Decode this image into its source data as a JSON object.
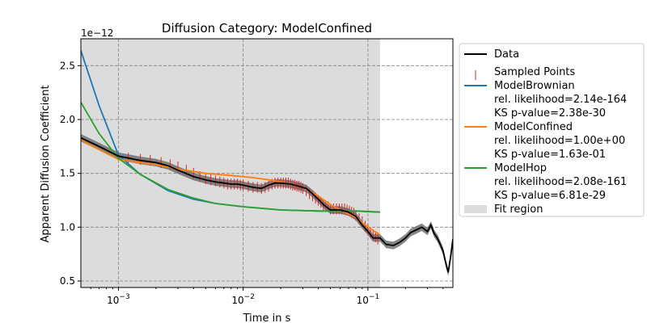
{
  "chart_data": {
    "type": "line",
    "title": "Diffusion Category: ModelConfined",
    "xlabel": "Time in s",
    "ylabel": "Apparent Diffusion Coefficient",
    "xscale": "log",
    "xlim": [
      0.0005,
      0.48
    ],
    "ylim": [
      4.4e-13,
      2.75e-12
    ],
    "y_offset_label": "1e−12",
    "grid": true,
    "legend_position": "outside-right",
    "x_tick_labels": [
      "10^-3",
      "10^-2",
      "10^-1"
    ],
    "x_ticks": [
      0.001,
      0.01,
      0.1
    ],
    "y_ticks": [
      0.5,
      1.0,
      1.5,
      2.0,
      2.5
    ],
    "y_tick_labels": [
      "0.5",
      "1.0",
      "1.5",
      "2.0",
      "2.5"
    ],
    "fit_region": {
      "x": [
        0.0005,
        0.125
      ],
      "label": "Fit region",
      "color": "#dcdcdc"
    },
    "series": [
      {
        "name": "Data",
        "color": "#000000",
        "x": [
          0.0005,
          0.0007,
          0.001,
          0.0015,
          0.002,
          0.0025,
          0.003,
          0.004,
          0.005,
          0.006,
          0.007,
          0.008,
          0.009,
          0.01,
          0.012,
          0.014,
          0.016,
          0.018,
          0.02,
          0.024,
          0.028,
          0.032,
          0.036,
          0.04,
          0.045,
          0.05,
          0.06,
          0.07,
          0.08,
          0.09,
          0.1,
          0.11,
          0.125,
          0.14,
          0.16,
          0.18,
          0.2,
          0.22,
          0.25,
          0.27,
          0.3,
          0.32,
          0.34,
          0.36,
          0.38,
          0.4,
          0.42,
          0.44,
          0.46,
          0.48
        ],
        "y": [
          1.83,
          1.75,
          1.66,
          1.62,
          1.6,
          1.57,
          1.53,
          1.47,
          1.44,
          1.42,
          1.41,
          1.4,
          1.4,
          1.39,
          1.37,
          1.36,
          1.39,
          1.41,
          1.41,
          1.4,
          1.38,
          1.36,
          1.31,
          1.26,
          1.2,
          1.16,
          1.16,
          1.14,
          1.1,
          1.02,
          0.96,
          0.9,
          0.9,
          0.84,
          0.83,
          0.86,
          0.9,
          0.95,
          0.98,
          1.0,
          0.96,
          1.02,
          0.94,
          0.9,
          0.84,
          0.78,
          0.67,
          0.58,
          0.72,
          0.89
        ]
      },
      {
        "name": "Sampled Points",
        "color": "#d62728",
        "x": [
          0.0012,
          0.0015,
          0.0018,
          0.0022,
          0.0026,
          0.003,
          0.0035,
          0.004,
          0.0045,
          0.005,
          0.0055,
          0.006,
          0.0065,
          0.007,
          0.0075,
          0.008,
          0.0085,
          0.009,
          0.0095,
          0.01,
          0.011,
          0.012,
          0.013,
          0.014,
          0.015,
          0.016,
          0.017,
          0.018,
          0.019,
          0.02,
          0.021,
          0.022,
          0.023,
          0.024,
          0.025,
          0.026,
          0.027,
          0.028,
          0.029,
          0.03,
          0.032,
          0.034,
          0.036,
          0.038,
          0.04,
          0.042,
          0.044,
          0.046,
          0.048,
          0.05,
          0.053,
          0.056,
          0.059,
          0.062,
          0.065,
          0.068,
          0.071,
          0.074,
          0.077,
          0.08,
          0.085,
          0.09,
          0.095,
          0.1,
          0.105,
          0.11,
          0.115,
          0.12
        ],
        "y": [
          1.64,
          1.63,
          1.62,
          1.6,
          1.58,
          1.56,
          1.53,
          1.5,
          1.47,
          1.45,
          1.44,
          1.43,
          1.42,
          1.41,
          1.4,
          1.4,
          1.4,
          1.4,
          1.39,
          1.39,
          1.38,
          1.37,
          1.37,
          1.36,
          1.37,
          1.38,
          1.4,
          1.41,
          1.41,
          1.41,
          1.41,
          1.41,
          1.41,
          1.4,
          1.39,
          1.39,
          1.38,
          1.38,
          1.37,
          1.36,
          1.34,
          1.31,
          1.29,
          1.27,
          1.25,
          1.23,
          1.21,
          1.2,
          1.19,
          1.17,
          1.17,
          1.17,
          1.17,
          1.17,
          1.17,
          1.16,
          1.15,
          1.14,
          1.13,
          1.11,
          1.08,
          1.05,
          1.01,
          0.98,
          0.95,
          0.93,
          0.91,
          0.89
        ],
        "errors": 0.05,
        "marker": "vertical-line"
      },
      {
        "name": "ModelBrownian\nrel. likelihood=2.14e-164\nKS p-value=2.38e-30",
        "color": "#1f77b4",
        "x": [
          0.0005,
          0.0007,
          0.001,
          0.0015,
          0.0025,
          0.004,
          0.006,
          0.01,
          0.02,
          0.04,
          0.08,
          0.125
        ],
        "y": [
          2.64,
          2.13,
          1.67,
          1.49,
          1.34,
          1.26,
          1.22,
          1.19,
          1.16,
          1.15,
          1.15,
          1.14
        ]
      },
      {
        "name": "ModelConfined\nrel. likelihood=1.00e+00\nKS p-value=1.63e-01",
        "color": "#ff7f0e",
        "x": [
          0.0005,
          0.0007,
          0.001,
          0.0015,
          0.002,
          0.003,
          0.005,
          0.008,
          0.012,
          0.016,
          0.02,
          0.03,
          0.04,
          0.05,
          0.06,
          0.08,
          0.1,
          0.125
        ],
        "y": [
          1.81,
          1.72,
          1.63,
          1.6,
          1.58,
          1.54,
          1.5,
          1.48,
          1.46,
          1.44,
          1.42,
          1.37,
          1.29,
          1.21,
          1.16,
          1.09,
          1.0,
          0.93
        ]
      },
      {
        "name": "ModelHop\nrel. likelihood=2.08e-161\nKS p-value=6.81e-29",
        "color": "#2ca02c",
        "x": [
          0.0005,
          0.0007,
          0.001,
          0.0015,
          0.0025,
          0.004,
          0.006,
          0.01,
          0.02,
          0.04,
          0.08,
          0.125
        ],
        "y": [
          2.16,
          1.87,
          1.64,
          1.49,
          1.35,
          1.27,
          1.22,
          1.19,
          1.16,
          1.15,
          1.15,
          1.14
        ]
      }
    ],
    "legend": [
      {
        "label_lines": [
          "Data"
        ],
        "color": "#000000",
        "kind": "line"
      },
      {
        "label_lines": [
          "Sampled Points"
        ],
        "color": "#d62728",
        "kind": "vline"
      },
      {
        "label_lines": [
          "ModelBrownian",
          "rel. likelihood=2.14e-164",
          "KS p-value=2.38e-30"
        ],
        "color": "#1f77b4",
        "kind": "line"
      },
      {
        "label_lines": [
          "ModelConfined",
          "rel. likelihood=1.00e+00",
          "KS p-value=1.63e-01"
        ],
        "color": "#ff7f0e",
        "kind": "line"
      },
      {
        "label_lines": [
          "ModelHop",
          "rel. likelihood=2.08e-161",
          "KS p-value=6.81e-29"
        ],
        "color": "#2ca02c",
        "kind": "line"
      },
      {
        "label_lines": [
          "Fit region"
        ],
        "color": "#dcdcdc",
        "kind": "patch"
      }
    ]
  }
}
